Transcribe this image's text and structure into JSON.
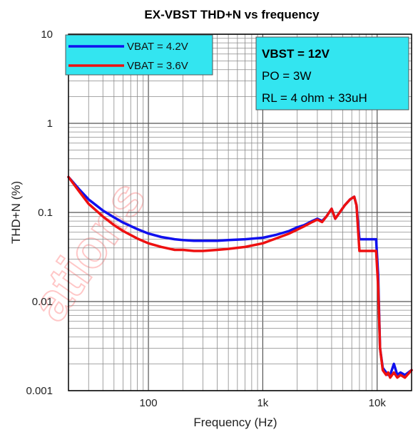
{
  "chart_data": {
    "type": "line",
    "title": "EX-VBST THD+N vs frequency",
    "xlabel": "Frequency (Hz)",
    "ylabel": "THD+N (%)",
    "x_scale": "log",
    "y_scale": "log",
    "xlim": [
      20,
      20000
    ],
    "ylim": [
      0.001,
      10
    ],
    "x_ticks": [
      {
        "value": 100,
        "label": "100"
      },
      {
        "value": 1000,
        "label": "1k"
      },
      {
        "value": 10000,
        "label": "10k"
      }
    ],
    "y_ticks": [
      {
        "value": 0.001,
        "label": "0.001"
      },
      {
        "value": 0.01,
        "label": "0.01"
      },
      {
        "value": 0.1,
        "label": "0.1"
      },
      {
        "value": 1,
        "label": "1"
      },
      {
        "value": 10,
        "label": "10"
      }
    ],
    "grid": true,
    "legend_position": "top-left",
    "series": [
      {
        "name": "VBAT = 4.2V",
        "color": "#1010ee",
        "x": [
          20,
          25,
          30,
          40,
          50,
          60,
          80,
          100,
          130,
          170,
          200,
          250,
          300,
          400,
          500,
          700,
          1000,
          1300,
          1700,
          2000,
          2300,
          2700,
          3000,
          3300,
          3600,
          4000,
          4300,
          4700,
          5200,
          5800,
          6300,
          6600,
          7000,
          8000,
          9000,
          9800,
          10200,
          10600,
          11200,
          12000,
          12500,
          13000,
          14000,
          15000,
          16000,
          17500,
          20000
        ],
        "y": [
          0.25,
          0.18,
          0.14,
          0.105,
          0.088,
          0.077,
          0.065,
          0.058,
          0.053,
          0.05,
          0.049,
          0.048,
          0.048,
          0.048,
          0.049,
          0.05,
          0.052,
          0.056,
          0.062,
          0.068,
          0.072,
          0.08,
          0.085,
          0.08,
          0.09,
          0.11,
          0.085,
          0.1,
          0.12,
          0.14,
          0.15,
          0.12,
          0.05,
          0.05,
          0.05,
          0.05,
          0.02,
          0.003,
          0.0018,
          0.0016,
          0.0015,
          0.0015,
          0.002,
          0.0015,
          0.0016,
          0.0015,
          0.0017
        ]
      },
      {
        "name": "VBAT = 3.6V",
        "color": "#ee1010",
        "x": [
          20,
          25,
          30,
          40,
          50,
          60,
          80,
          100,
          130,
          170,
          200,
          250,
          300,
          400,
          500,
          700,
          1000,
          1300,
          1700,
          2000,
          2300,
          2700,
          3000,
          3300,
          3600,
          4000,
          4300,
          4700,
          5200,
          5800,
          6300,
          6600,
          7000,
          8000,
          9000,
          9800,
          10200,
          10600,
          11200,
          12000,
          12500,
          13000,
          14000,
          15000,
          16000,
          17500,
          20000
        ],
        "y": [
          0.25,
          0.17,
          0.125,
          0.09,
          0.072,
          0.062,
          0.051,
          0.045,
          0.041,
          0.038,
          0.038,
          0.037,
          0.037,
          0.038,
          0.039,
          0.041,
          0.045,
          0.051,
          0.058,
          0.064,
          0.07,
          0.078,
          0.083,
          0.078,
          0.09,
          0.11,
          0.085,
          0.1,
          0.12,
          0.14,
          0.15,
          0.12,
          0.037,
          0.037,
          0.037,
          0.037,
          0.015,
          0.003,
          0.0017,
          0.0015,
          0.0016,
          0.0014,
          0.0016,
          0.0014,
          0.0015,
          0.0014,
          0.0017
        ]
      }
    ],
    "annotation": {
      "lines": [
        "VBST  = 12V",
        "PO = 3W",
        "RL = 4 ohm + 33uH"
      ],
      "background": "#33e5f0"
    },
    "legend_background": "#33e5f0"
  }
}
